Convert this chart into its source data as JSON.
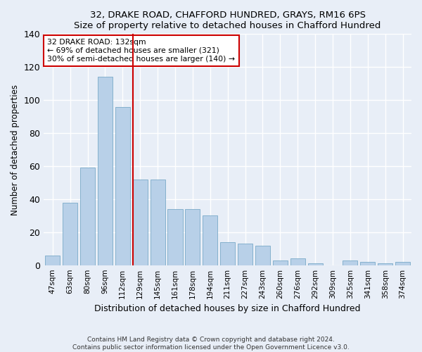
{
  "title1": "32, DRAKE ROAD, CHAFFORD HUNDRED, GRAYS, RM16 6PS",
  "title2": "Size of property relative to detached houses in Chafford Hundred",
  "xlabel": "Distribution of detached houses by size in Chafford Hundred",
  "ylabel": "Number of detached properties",
  "categories": [
    "47sqm",
    "63sqm",
    "80sqm",
    "96sqm",
    "112sqm",
    "129sqm",
    "145sqm",
    "161sqm",
    "178sqm",
    "194sqm",
    "211sqm",
    "227sqm",
    "243sqm",
    "260sqm",
    "276sqm",
    "292sqm",
    "309sqm",
    "325sqm",
    "341sqm",
    "358sqm",
    "374sqm"
  ],
  "values": [
    6,
    38,
    59,
    114,
    96,
    52,
    52,
    34,
    34,
    30,
    14,
    13,
    12,
    3,
    4,
    1,
    0,
    3,
    2,
    1,
    2
  ],
  "bar_color": "#b8d0e8",
  "bar_edge_color": "#7aaac8",
  "vline_color": "#cc0000",
  "annotation_text": "32 DRAKE ROAD: 132sqm\n← 69% of detached houses are smaller (321)\n30% of semi-detached houses are larger (140) →",
  "annotation_box_color": "#ffffff",
  "annotation_box_edge": "#cc0000",
  "ylim": [
    0,
    140
  ],
  "yticks": [
    0,
    20,
    40,
    60,
    80,
    100,
    120,
    140
  ],
  "footnote1": "Contains HM Land Registry data © Crown copyright and database right 2024.",
  "footnote2": "Contains public sector information licensed under the Open Government Licence v3.0.",
  "bg_color": "#e8eef7",
  "plot_bg_color": "#e8eef7"
}
